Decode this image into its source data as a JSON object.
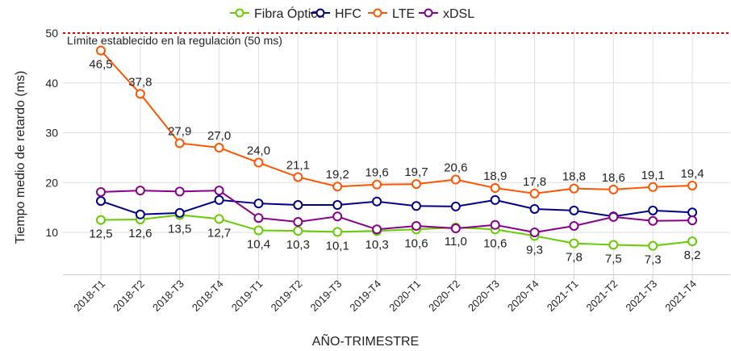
{
  "chart_data": {
    "type": "line",
    "title": "",
    "xlabel": "AÑO-TRIMESTRE",
    "ylabel": "Tiempo medio de retardo (ms)",
    "ylim": [
      0,
      50
    ],
    "yticks": [
      10,
      20,
      30,
      40,
      50
    ],
    "grid": true,
    "legend_position": "top",
    "reference_line": {
      "value": 50,
      "label": "Límite establecido en la regulación (50 ms)",
      "color": "#e00000"
    },
    "categories": [
      "2018-T1",
      "2018-T2",
      "2018-T3",
      "2018-T4",
      "2019-T1",
      "2019-T2",
      "2019-T3",
      "2019-T4",
      "2020-T1",
      "2020-T2",
      "2020-T3",
      "2020-T4",
      "2021-T1",
      "2021-T2",
      "2021-T3",
      "2021-T4"
    ],
    "series": [
      {
        "name": "Fibra Óptica",
        "color": "#66cc00",
        "labeled": true,
        "label_pos": "below",
        "values": [
          12.5,
          12.6,
          13.5,
          12.7,
          10.4,
          10.3,
          10.1,
          10.3,
          10.6,
          11.0,
          10.6,
          9.3,
          7.8,
          7.5,
          7.3,
          8.2
        ]
      },
      {
        "name": "HFC",
        "color": "#000088",
        "labeled": false,
        "values": [
          16.3,
          13.6,
          13.9,
          16.5,
          15.8,
          15.5,
          15.5,
          16.2,
          15.3,
          15.2,
          16.5,
          14.7,
          14.4,
          13.2,
          14.4,
          14.0
        ]
      },
      {
        "name": "LTE",
        "color": "#ff5500",
        "labeled": true,
        "label_pos": "above",
        "values": [
          46.5,
          37.8,
          27.9,
          27.0,
          24.0,
          21.1,
          19.2,
          19.6,
          19.7,
          20.6,
          18.9,
          17.8,
          18.8,
          18.6,
          19.1,
          19.4
        ]
      },
      {
        "name": "xDSL",
        "color": "#880088",
        "labeled": false,
        "values": [
          18.1,
          18.4,
          18.2,
          18.4,
          12.9,
          12.1,
          13.2,
          10.6,
          11.3,
          10.8,
          11.5,
          10.0,
          11.3,
          13.1,
          12.3,
          12.4
        ]
      }
    ]
  }
}
